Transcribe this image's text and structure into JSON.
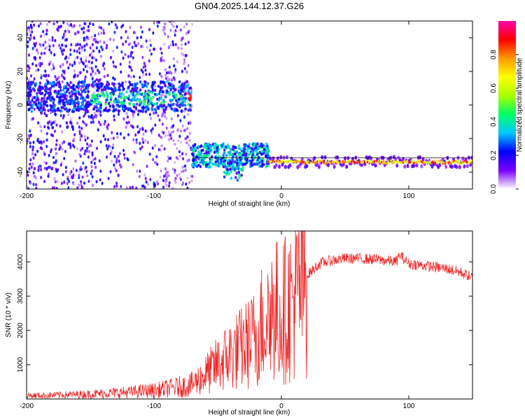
{
  "chart_data": [
    {
      "type": "heatmap",
      "title": "GN04.2025.144.12.37.G26",
      "xlabel": "Height of straight line (km)",
      "ylabel": "Frequency (Hz)",
      "xlim": [
        -200,
        150
      ],
      "ylim": [
        -50,
        50
      ],
      "xticks": [
        -200,
        -100,
        0,
        100
      ],
      "yticks": [
        -40,
        -20,
        0,
        20,
        40
      ],
      "colorbar": {
        "label": "Normalized spectral amplitude",
        "range": [
          0,
          1
        ],
        "ticks": [
          "0.0",
          "0.2",
          "0.4",
          "0.6",
          "0.8"
        ],
        "tick_values": [
          0,
          0.2,
          0.4,
          0.6,
          0.8
        ],
        "colors": [
          "#ffffff",
          "#7a00ff",
          "#0000ff",
          "#00c8ff",
          "#00ff66",
          "#aaff00",
          "#ffff00",
          "#ff9900",
          "#ff0000",
          "#ff00aa"
        ]
      },
      "features": [
        {
          "x_range": [
            -200,
            -70
          ],
          "frequency_hz": 5,
          "amplitude": 0.3,
          "note_visible": false
        },
        {
          "x_range": [
            -70,
            -10
          ],
          "frequency_hz": -30,
          "amplitude": 0.35
        },
        {
          "x_range": [
            -10,
            150
          ],
          "frequency_hz": -34,
          "amplitude": 0.9
        }
      ]
    },
    {
      "type": "line",
      "title": "",
      "xlabel": "Height of straight line (km)",
      "ylabel": "SNR (10 * v/v)",
      "xlim": [
        -200,
        150
      ],
      "ylim": [
        0,
        4900
      ],
      "xticks": [
        -200,
        -100,
        0,
        100
      ],
      "yticks": [
        1000,
        2000,
        3000,
        4000
      ],
      "color": "#ee2222",
      "series": [
        {
          "x": [
            -200,
            -180,
            -160,
            -140,
            -120,
            -100,
            -90,
            -80,
            -70,
            -60,
            -50,
            -40,
            -30,
            -20,
            -15,
            -10,
            -5,
            0,
            10,
            20,
            30,
            40,
            50,
            60,
            70,
            80,
            90,
            93,
            100,
            110,
            120,
            130,
            140,
            150
          ],
          "y": [
            100,
            110,
            130,
            160,
            200,
            250,
            300,
            350,
            420,
            700,
            1000,
            1300,
            1500,
            1800,
            2200,
            2500,
            2600,
            2500,
            2900,
            3600,
            3950,
            4050,
            4100,
            4100,
            4080,
            4050,
            4000,
            4200,
            3950,
            3900,
            3850,
            3800,
            3700,
            3550
          ]
        }
      ]
    }
  ]
}
